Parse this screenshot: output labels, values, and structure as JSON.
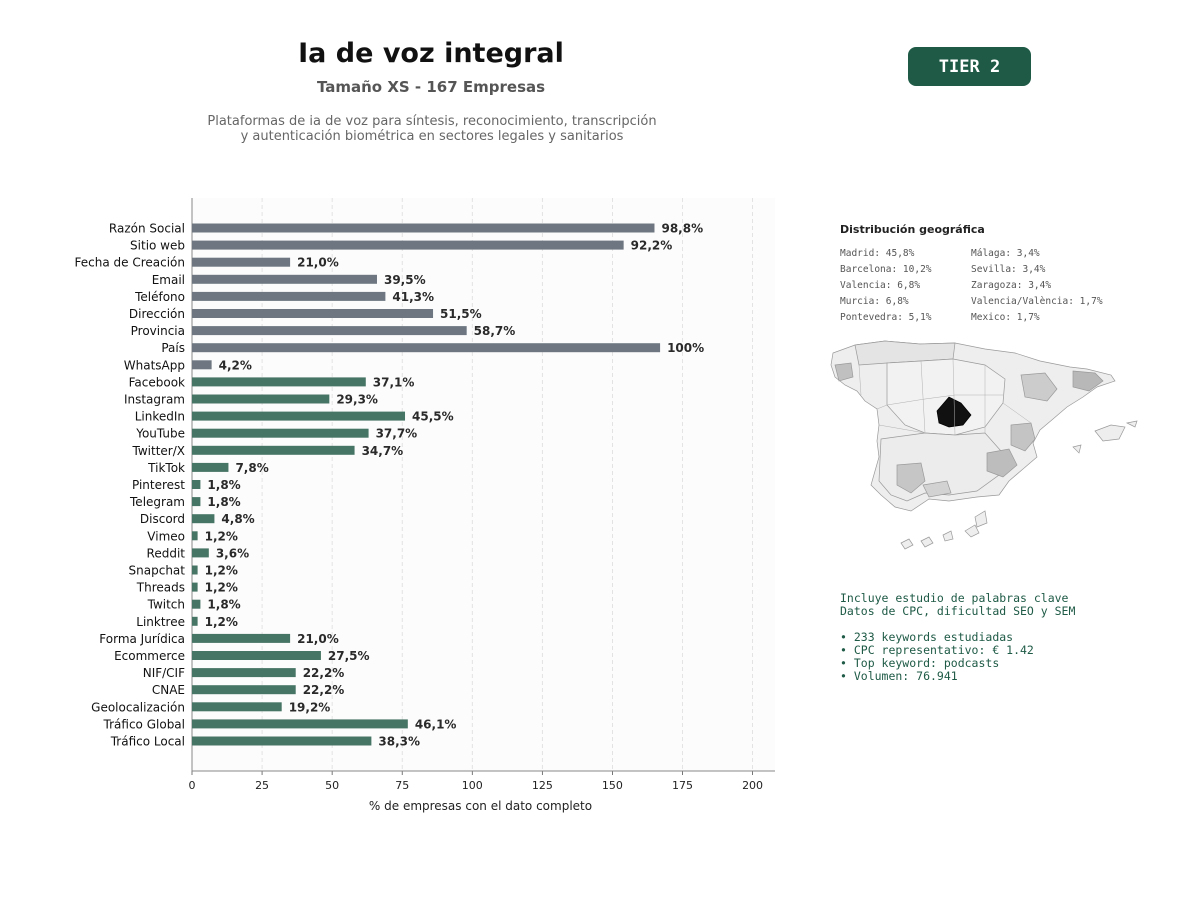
{
  "header": {
    "title": "Ia de voz integral",
    "subtitle": "Tamaño XS - 167 Empresas",
    "description_line1": "Plataformas de ia de voz para síntesis, reconocimiento, transcripción",
    "description_line2": "y autenticación biométrica en sectores legales y sanitarios",
    "tier": "TIER 2"
  },
  "colors": {
    "gray_bar": "#6e7781",
    "green_bar": "#477565",
    "accent": "#1e5a45"
  },
  "chart_data": {
    "type": "bar",
    "orientation": "horizontal",
    "xlabel": "% de empresas con el dato completo",
    "xlim": [
      0,
      208
    ],
    "xticks": [
      0,
      25,
      50,
      75,
      100,
      125,
      150,
      175,
      200
    ],
    "grid": "vertical-dashed",
    "categories": [
      "Razón Social",
      "Sitio web",
      "Fecha de Creación",
      "Email",
      "Teléfono",
      "Dirección",
      "Provincia",
      "País",
      "WhatsApp",
      "Facebook",
      "Instagram",
      "LinkedIn",
      "YouTube",
      "Twitter/X",
      "TikTok",
      "Pinterest",
      "Telegram",
      "Discord",
      "Vimeo",
      "Reddit",
      "Snapchat",
      "Threads",
      "Twitch",
      "Linktree",
      "Forma Jurídica",
      "Ecommerce",
      "NIF/CIF",
      "CNAE",
      "Geolocalización",
      "Tráfico Global",
      "Tráfico Local"
    ],
    "values": [
      165,
      154,
      35,
      66,
      69,
      86,
      98,
      167,
      7,
      62,
      49,
      76,
      63,
      58,
      13,
      3,
      3,
      8,
      2,
      6,
      2,
      2,
      3,
      2,
      35,
      46,
      37,
      37,
      32,
      77,
      64
    ],
    "labels": [
      "98,8%",
      "92,2%",
      "21,0%",
      "39,5%",
      "41,3%",
      "51,5%",
      "58,7%",
      "100%",
      "4,2%",
      "37,1%",
      "29,3%",
      "45,5%",
      "37,7%",
      "34,7%",
      "7,8%",
      "1,8%",
      "1,8%",
      "4,8%",
      "1,2%",
      "3,6%",
      "1,2%",
      "1,2%",
      "1,8%",
      "1,2%",
      "21,0%",
      "27,5%",
      "22,2%",
      "22,2%",
      "19,2%",
      "46,1%",
      "38,3%"
    ],
    "bar_groups": [
      "gray",
      "gray",
      "gray",
      "gray",
      "gray",
      "gray",
      "gray",
      "gray",
      "gray",
      "green",
      "green",
      "green",
      "green",
      "green",
      "green",
      "green",
      "green",
      "green",
      "green",
      "green",
      "green",
      "green",
      "green",
      "green",
      "green",
      "green",
      "green",
      "green",
      "green",
      "green",
      "green"
    ]
  },
  "geo": {
    "title": "Distribución geográfica",
    "col1": [
      "Madrid: 45,8%",
      "Barcelona: 10,2%",
      "Valencia: 6,8%",
      "Murcia: 6,8%",
      "Pontevedra: 5,1%"
    ],
    "col2": [
      "Málaga: 3,4%",
      "Sevilla: 3,4%",
      "Zaragoza: 3,4%",
      "Valencia/València: 1,7%",
      "Mexico: 1,7%"
    ]
  },
  "keywords": {
    "line1": "Incluye estudio de palabras clave",
    "line2": "Datos de CPC, dificultad SEO y SEM",
    "bullets": [
      "• 233 keywords estudiadas",
      "• CPC representativo: € 1.42",
      "• Top keyword: podcasts",
      "• Volumen: 76.941"
    ]
  }
}
